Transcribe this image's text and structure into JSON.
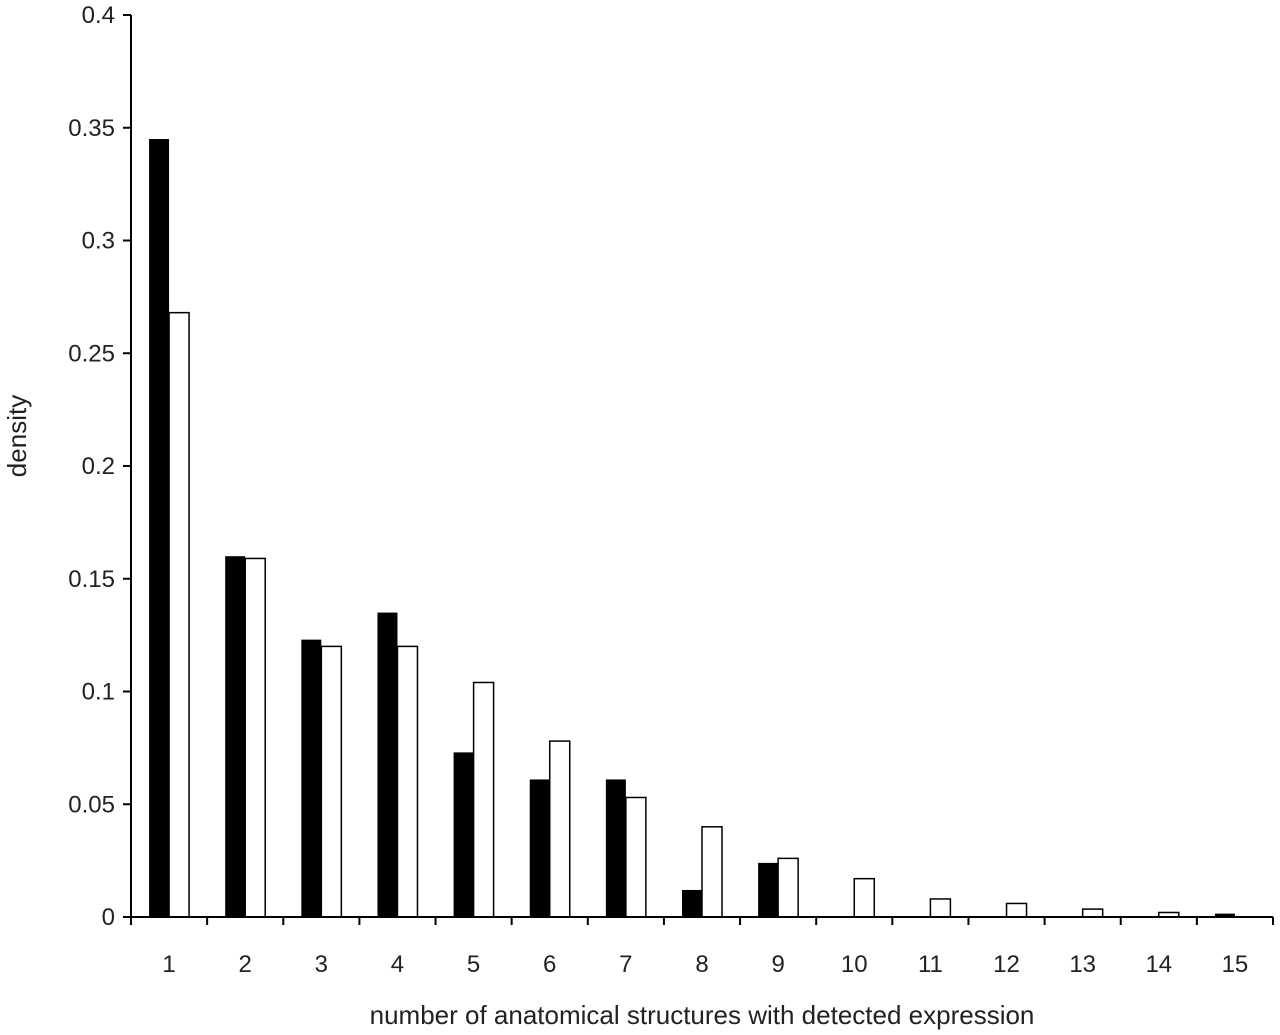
{
  "chart_data": {
    "type": "bar",
    "title": "",
    "xlabel": "number of anatomical structures with detected expression",
    "ylabel": "density",
    "ylim": [
      0,
      0.4
    ],
    "y_ticks": [
      "0",
      "0.05",
      "0.1",
      "0.15",
      "0.2",
      "0.25",
      "0.3",
      "0.35",
      "0.4"
    ],
    "y_tick_values": [
      0,
      0.05,
      0.1,
      0.15,
      0.2,
      0.25,
      0.3,
      0.35,
      0.4
    ],
    "categories": [
      "1",
      "2",
      "3",
      "4",
      "5",
      "6",
      "7",
      "8",
      "9",
      "10",
      "11",
      "12",
      "13",
      "14",
      "15"
    ],
    "grid": false,
    "legend": "none",
    "series": [
      {
        "color": "#000000",
        "values": [
          0.345,
          0.16,
          0.123,
          0.135,
          0.073,
          0.061,
          0.061,
          0.012,
          0.024,
          0,
          0,
          0,
          0,
          0,
          0.0015
        ]
      },
      {
        "color": "#ffffff",
        "values": [
          0.268,
          0.159,
          0.12,
          0.12,
          0.104,
          0.078,
          0.053,
          0.04,
          0.026,
          0.017,
          0.008,
          0.006,
          0.0035,
          0.002,
          0
        ]
      }
    ]
  }
}
